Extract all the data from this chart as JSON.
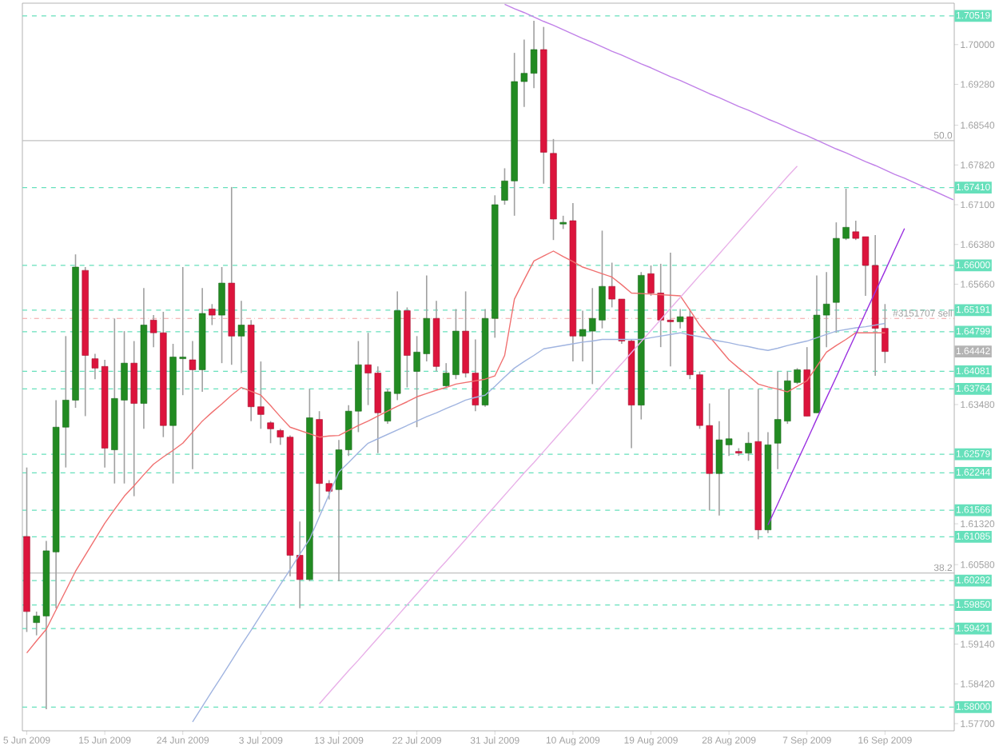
{
  "chart_data": {
    "type": "candlestick",
    "categories": [
      "5 Jun 2009",
      null,
      null,
      null,
      null,
      null,
      null,
      null,
      "15 Jun 2009",
      null,
      null,
      null,
      null,
      null,
      null,
      null,
      "24 Jun 2009",
      null,
      null,
      null,
      null,
      null,
      null,
      null,
      "3 Jul 2009",
      null,
      null,
      null,
      null,
      null,
      null,
      null,
      "13 Jul 2009",
      null,
      null,
      null,
      null,
      null,
      null,
      null,
      "22 Jul 2009",
      null,
      null,
      null,
      null,
      null,
      null,
      null,
      "31 Jul 2009",
      null,
      null,
      null,
      null,
      null,
      null,
      null,
      "10 Aug 2009",
      null,
      null,
      null,
      null,
      null,
      null,
      null,
      "19 Aug 2009",
      null,
      null,
      null,
      null,
      null,
      null,
      null,
      "28 Aug 2009",
      null,
      null,
      null,
      null,
      null,
      null,
      null,
      "7 Sep 2009",
      null,
      null,
      null,
      null,
      null,
      null,
      null,
      "16 Sep 2009",
      null,
      null,
      null,
      null,
      null,
      null,
      null
    ],
    "ylim": [
      1.5757,
      1.7075
    ],
    "yticks": [
      {
        "value": 1.7,
        "label": "1.70000"
      },
      {
        "value": 1.6928,
        "label": "1.69280"
      },
      {
        "value": 1.6854,
        "label": "1.68540"
      },
      {
        "value": 1.6782,
        "label": "1.67820"
      },
      {
        "value": 1.671,
        "label": "1.67100"
      },
      {
        "value": 1.6638,
        "label": "1.66380"
      },
      {
        "value": 1.6566,
        "label": "1.65660"
      },
      {
        "value": 1.6348,
        "label": "1.63480"
      },
      {
        "value": 1.6132,
        "label": "1.61320"
      },
      {
        "value": 1.6058,
        "label": "1.60580"
      },
      {
        "value": 1.5914,
        "label": "1.59140"
      },
      {
        "value": 1.5842,
        "label": "1.58420"
      },
      {
        "value": 1.577,
        "label": "1.57700"
      }
    ],
    "ohlc": [
      [
        1.6109,
        1.6234,
        1.5936,
        1.5973
      ],
      [
        1.5953,
        1.5973,
        1.593,
        1.5965
      ],
      [
        1.5965,
        1.6101,
        1.5796,
        1.6083
      ],
      [
        1.6081,
        1.6356,
        1.5979,
        1.6307
      ],
      [
        1.6307,
        1.6472,
        1.6234,
        1.6356
      ],
      [
        1.6356,
        1.662,
        1.6342,
        1.6597
      ],
      [
        1.6591,
        1.6597,
        1.6327,
        1.6437
      ],
      [
        1.6431,
        1.644,
        1.6394,
        1.6414
      ],
      [
        1.6417,
        1.6429,
        1.6234,
        1.6269
      ],
      [
        1.6266,
        1.6504,
        1.6205,
        1.6359
      ],
      [
        1.6356,
        1.6481,
        1.6205,
        1.6423
      ],
      [
        1.6423,
        1.6463,
        1.6182,
        1.635
      ],
      [
        1.635,
        1.6559,
        1.6304,
        1.6492
      ],
      [
        1.6501,
        1.651,
        1.6452,
        1.6478
      ],
      [
        1.6478,
        1.6516,
        1.6289,
        1.631
      ],
      [
        1.631,
        1.6458,
        1.6205,
        1.6434
      ],
      [
        1.6431,
        1.6597,
        1.6365,
        1.6434
      ],
      [
        1.6429,
        1.6463,
        1.6231,
        1.6411
      ],
      [
        1.6411,
        1.6559,
        1.6371,
        1.6513
      ],
      [
        1.6521,
        1.653,
        1.6492,
        1.651
      ],
      [
        1.651,
        1.6597,
        1.6423,
        1.6568
      ],
      [
        1.6568,
        1.6742,
        1.642,
        1.6472
      ],
      [
        1.6472,
        1.6536,
        1.6405,
        1.6492
      ],
      [
        1.6492,
        1.6501,
        1.6318,
        1.6344
      ],
      [
        1.6344,
        1.6426,
        1.6304,
        1.633
      ],
      [
        1.6315,
        1.6318,
        1.6278,
        1.6304
      ],
      [
        1.6301,
        1.6304,
        1.6275,
        1.6289
      ],
      [
        1.6289,
        1.6292,
        1.6037,
        1.6075
      ],
      [
        1.6075,
        1.6136,
        1.5979,
        1.6031
      ],
      [
        1.6031,
        1.6376,
        1.6028,
        1.6324
      ],
      [
        1.6321,
        1.6336,
        1.6153,
        1.6205
      ],
      [
        1.6205,
        1.6211,
        1.6176,
        1.6191
      ],
      [
        1.6194,
        1.6284,
        1.6028,
        1.6266
      ],
      [
        1.6266,
        1.6347,
        1.6255,
        1.6336
      ],
      [
        1.6336,
        1.6463,
        1.6298,
        1.642
      ],
      [
        1.642,
        1.6478,
        1.6347,
        1.6405
      ],
      [
        1.6405,
        1.6417,
        1.626,
        1.6333
      ],
      [
        1.6318,
        1.6376,
        1.6313,
        1.6371
      ],
      [
        1.6368,
        1.6553,
        1.6356,
        1.6518
      ],
      [
        1.6518,
        1.6524,
        1.6379,
        1.6437
      ],
      [
        1.6408,
        1.6472,
        1.6307,
        1.6443
      ],
      [
        1.644,
        1.6582,
        1.6426,
        1.6504
      ],
      [
        1.6504,
        1.6536,
        1.6408,
        1.6417
      ],
      [
        1.6382,
        1.6423,
        1.6379,
        1.6405
      ],
      [
        1.6402,
        1.6521,
        1.6394,
        1.6481
      ],
      [
        1.6481,
        1.6553,
        1.6397,
        1.6405
      ],
      [
        1.6405,
        1.6466,
        1.6336,
        1.6347
      ],
      [
        1.6347,
        1.6521,
        1.6344,
        1.6504
      ],
      [
        1.6504,
        1.6727,
        1.6469,
        1.671
      ],
      [
        1.6718,
        1.6776,
        1.671,
        1.6753
      ],
      [
        1.6753,
        1.6985,
        1.669,
        1.6933
      ],
      [
        1.6933,
        1.7009,
        1.6887,
        1.6948
      ],
      [
        1.6948,
        1.7043,
        1.6921,
        1.6991
      ],
      [
        1.6991,
        1.7032,
        1.6748,
        1.6805
      ],
      [
        1.6803,
        1.6829,
        1.6646,
        1.6684
      ],
      [
        1.6675,
        1.669,
        1.6666,
        1.6678
      ],
      [
        1.6681,
        1.6713,
        1.6426,
        1.6472
      ],
      [
        1.6472,
        1.6518,
        1.6426,
        1.6484
      ],
      [
        1.6481,
        1.6559,
        1.6385,
        1.6504
      ],
      [
        1.6501,
        1.6663,
        1.6486,
        1.6562
      ],
      [
        1.6562,
        1.6605,
        1.6524,
        1.6539
      ],
      [
        1.6539,
        1.6539,
        1.6458,
        1.6463
      ],
      [
        1.6463,
        1.6466,
        1.6269,
        1.6347
      ],
      [
        1.6347,
        1.6588,
        1.6321,
        1.6582
      ],
      [
        1.6585,
        1.66,
        1.6545,
        1.655
      ],
      [
        1.655,
        1.6603,
        1.6452,
        1.6501
      ],
      [
        1.6501,
        1.6623,
        1.6417,
        1.6498
      ],
      [
        1.6498,
        1.6521,
        1.6486,
        1.6507
      ],
      [
        1.6507,
        1.6521,
        1.6394,
        1.6402
      ],
      [
        1.6402,
        1.6408,
        1.6304,
        1.631
      ],
      [
        1.631,
        1.635,
        1.6156,
        1.6223
      ],
      [
        1.6223,
        1.6318,
        1.6147,
        1.6284
      ],
      [
        1.6275,
        1.6376,
        1.6255,
        1.6286
      ],
      [
        1.6263,
        1.6269,
        1.6255,
        1.626
      ],
      [
        1.626,
        1.6298,
        1.6246,
        1.6278
      ],
      [
        1.6281,
        1.6376,
        1.6104,
        1.6121
      ],
      [
        1.6121,
        1.6298,
        1.6115,
        1.6275
      ],
      [
        1.6278,
        1.6408,
        1.6231,
        1.6321
      ],
      [
        1.6318,
        1.6408,
        1.6313,
        1.6391
      ],
      [
        1.6388,
        1.6414,
        1.6385,
        1.6411
      ],
      [
        1.6411,
        1.6452,
        1.6327,
        1.6327
      ],
      [
        1.6333,
        1.6582,
        1.6333,
        1.651
      ],
      [
        1.651,
        1.6588,
        1.6452,
        1.653
      ],
      [
        1.6533,
        1.6678,
        1.6478,
        1.6649
      ],
      [
        1.6649,
        1.6739,
        1.6646,
        1.6669
      ],
      [
        1.6661,
        1.6681,
        1.6646,
        1.6649
      ],
      [
        1.6652,
        1.6652,
        1.6545,
        1.66
      ],
      [
        1.66,
        1.6655,
        1.64,
        1.6486
      ],
      [
        1.6486,
        1.653,
        1.6423,
        1.6444
      ],
      null,
      null,
      null,
      null,
      null,
      null,
      null
    ],
    "colors": [
      "#dc143c",
      "#228b22",
      "#228b22",
      "#228b22",
      "#228b22",
      "#228b22",
      "#dc143c",
      "#dc143c",
      "#dc143c",
      "#228b22",
      "#228b22",
      "#dc143c",
      "#228b22",
      "#dc143c",
      "#dc143c",
      "#228b22",
      "#228b22",
      "#dc143c",
      "#228b22",
      "#dc143c",
      "#228b22",
      "#dc143c",
      "#228b22",
      "#dc143c",
      "#dc143c",
      "#dc143c",
      "#dc143c",
      "#dc143c",
      "#dc143c",
      "#228b22",
      "#dc143c",
      "#dc143c",
      "#228b22",
      "#228b22",
      "#228b22",
      "#dc143c",
      "#dc143c",
      "#228b22",
      "#228b22",
      "#dc143c",
      "#228b22",
      "#228b22",
      "#dc143c",
      "#228b22",
      "#228b22",
      "#dc143c",
      "#dc143c",
      "#228b22",
      "#228b22",
      "#228b22",
      "#228b22",
      "#228b22",
      "#228b22",
      "#dc143c",
      "#dc143c",
      "#228b22",
      "#dc143c",
      "#228b22",
      "#228b22",
      "#228b22",
      "#dc143c",
      "#dc143c",
      "#dc143c",
      "#228b22",
      "#dc143c",
      "#dc143c",
      "#dc143c",
      "#228b22",
      "#dc143c",
      "#dc143c",
      "#dc143c",
      "#228b22",
      "#228b22",
      "#dc143c",
      "#228b22",
      "#dc143c",
      "#228b22",
      "#228b22",
      "#228b22",
      "#228b22",
      "#dc143c",
      "#228b22",
      "#228b22",
      "#228b22",
      "#228b22",
      "#dc143c",
      "#dc143c",
      "#dc143c",
      "#dc143c",
      null,
      null,
      null,
      null,
      null,
      null,
      null
    ],
    "series": [
      {
        "type": "line",
        "color": "#f07070",
        "values": [
          1.5898,
          1.592,
          1.5941,
          1.5976,
          1.6011,
          1.6046,
          1.6075,
          1.6104,
          1.6133,
          1.6158,
          1.6182,
          1.6201,
          1.6221,
          1.624,
          1.6253,
          1.6265,
          1.6278,
          1.6298,
          1.6318,
          1.6334,
          1.6349,
          1.6365,
          1.6379,
          1.6372,
          1.6365,
          1.6346,
          1.6326,
          1.6307,
          1.6301,
          1.6295,
          1.6289,
          1.6291,
          1.6292,
          1.6301,
          1.631,
          1.6318,
          1.6327,
          1.6336,
          1.6345,
          1.6353,
          1.6362,
          1.6368,
          1.6374,
          1.6379,
          1.6385,
          1.6388,
          1.6391,
          1.6394,
          1.64,
          1.6437,
          1.6539,
          1.6574,
          1.6608,
          1.6617,
          1.6626,
          1.6616,
          1.6607,
          1.6597,
          1.6591,
          1.6585,
          1.6579,
          1.6565,
          1.655,
          1.6549,
          1.6548,
          1.6547,
          1.6546,
          1.6545,
          1.6519,
          1.6492,
          1.6471,
          1.645,
          1.6429,
          1.6414,
          1.64,
          1.6385,
          1.638,
          1.6376,
          1.6371,
          1.6381,
          1.6391,
          1.6417,
          1.6443,
          1.6455,
          1.6466,
          1.6478,
          1.6478,
          1.6478,
          1.6478,
          null,
          null,
          null,
          null,
          null,
          null,
          null
        ]
      },
      {
        "type": "line",
        "color": "#a0b4e0",
        "values": [
          null,
          null,
          null,
          null,
          null,
          null,
          null,
          null,
          null,
          null,
          null,
          null,
          null,
          null,
          null,
          null,
          null,
          1.5773,
          1.5801,
          1.5829,
          1.5856,
          1.5884,
          1.5912,
          1.5939,
          1.5967,
          1.5994,
          1.6022,
          1.6049,
          1.6077,
          1.6104,
          1.6145,
          1.6185,
          1.6226,
          1.6243,
          1.6261,
          1.6278,
          1.6286,
          1.6294,
          1.6302,
          1.631,
          1.6318,
          1.6326,
          1.6333,
          1.6341,
          1.6348,
          1.6356,
          1.6361,
          1.6365,
          1.6381,
          1.6398,
          1.6414,
          1.6426,
          1.6437,
          1.6449,
          1.6452,
          1.6455,
          1.6458,
          1.6461,
          1.6463,
          1.6466,
          1.6466,
          1.6466,
          1.6466,
          1.6466,
          1.6469,
          1.6472,
          1.6475,
          1.6478,
          1.6474,
          1.6471,
          1.6467,
          1.6463,
          1.646,
          1.6456,
          1.6453,
          1.6449,
          1.6446,
          1.645,
          1.6455,
          1.6459,
          1.6463,
          1.6469,
          1.6475,
          1.6481,
          1.6484,
          1.6487,
          1.6489,
          1.6492,
          1.6495,
          null,
          null,
          null,
          null,
          null,
          null,
          null
        ]
      },
      {
        "type": "line",
        "color": "#e8b0e8",
        "values": [
          null,
          null,
          null,
          null,
          null,
          null,
          null,
          null,
          null,
          null,
          null,
          null,
          null,
          null,
          null,
          null,
          null,
          null,
          null,
          null,
          null,
          null,
          null,
          null,
          null,
          null,
          null,
          null,
          null,
          null,
          1.5806,
          1.5826,
          1.5846,
          1.5866,
          1.5885,
          1.5905,
          1.5925,
          1.5945,
          1.5965,
          1.5985,
          1.6005,
          1.6025,
          1.6045,
          1.6064,
          1.6084,
          1.6104,
          1.6124,
          1.6144,
          1.6164,
          1.6184,
          1.6204,
          1.6224,
          1.6243,
          1.6263,
          1.6283,
          1.6303,
          1.6323,
          1.6343,
          1.6363,
          1.6383,
          1.6403,
          1.6422,
          1.6442,
          1.6462,
          1.6482,
          1.6502,
          1.6522,
          1.6542,
          1.6562,
          1.6582,
          1.6601,
          1.6621,
          1.6641,
          1.6661,
          1.6681,
          1.6701,
          1.6721,
          1.6741,
          1.6761,
          1.678,
          null,
          null,
          null,
          null,
          null,
          null,
          null,
          null,
          null,
          null,
          null,
          null,
          null,
          null,
          null,
          null
        ]
      },
      {
        "type": "line",
        "color": "#c080e8",
        "values": [
          null,
          null,
          null,
          null,
          null,
          null,
          null,
          null,
          null,
          null,
          null,
          null,
          null,
          null,
          null,
          null,
          null,
          null,
          null,
          null,
          null,
          null,
          null,
          null,
          null,
          null,
          null,
          null,
          null,
          null,
          null,
          null,
          null,
          null,
          null,
          null,
          null,
          null,
          null,
          null,
          null,
          null,
          null,
          null,
          null,
          null,
          null,
          null,
          null,
          1.7073,
          1.7065,
          1.7058,
          1.705,
          1.7042,
          1.7035,
          1.7027,
          1.7019,
          1.7011,
          1.7004,
          1.6996,
          1.6988,
          1.6981,
          1.6973,
          1.6965,
          1.6958,
          1.695,
          1.6942,
          1.6935,
          1.6927,
          1.6919,
          1.6911,
          1.6904,
          1.6896,
          1.6888,
          1.6881,
          1.6873,
          1.6865,
          1.6858,
          1.685,
          1.6842,
          1.6835,
          1.6827,
          1.6819,
          1.6811,
          1.6804,
          1.6796,
          1.6788,
          1.6781,
          1.6773,
          1.6765,
          1.6758,
          1.675,
          1.6742,
          1.6735,
          1.6727,
          1.6719
        ]
      },
      {
        "type": "line",
        "color": "#9a30e0",
        "values": [
          null,
          null,
          null,
          null,
          null,
          null,
          null,
          null,
          null,
          null,
          null,
          null,
          null,
          null,
          null,
          null,
          null,
          null,
          null,
          null,
          null,
          null,
          null,
          null,
          null,
          null,
          null,
          null,
          null,
          null,
          null,
          null,
          null,
          null,
          null,
          null,
          null,
          null,
          null,
          null,
          null,
          null,
          null,
          null,
          null,
          null,
          null,
          null,
          null,
          null,
          null,
          null,
          null,
          null,
          null,
          null,
          null,
          null,
          null,
          null,
          null,
          null,
          null,
          null,
          null,
          null,
          null,
          null,
          null,
          null,
          null,
          null,
          null,
          null,
          null,
          null,
          1.613,
          1.6168,
          1.6207,
          1.6245,
          1.6283,
          1.6322,
          1.636,
          1.6398,
          1.6437,
          1.6475,
          1.6514,
          1.6552,
          1.659,
          1.6629,
          1.6667,
          null,
          null,
          null,
          null,
          null
        ]
      }
    ],
    "ref_lines": [
      {
        "axis": "y",
        "value": 1.70519,
        "label": "1.70519",
        "color": "#66e0bb",
        "line_style": "dashed"
      },
      {
        "axis": "y",
        "value": 1.6741,
        "label": "1.67410",
        "color": "#66e0bb",
        "line_style": "dashed"
      },
      {
        "axis": "y",
        "value": 1.66,
        "label": "1.66000",
        "color": "#66e0bb",
        "line_style": "dashed"
      },
      {
        "axis": "y",
        "value": 1.65191,
        "label": "1.65191",
        "color": "#66e0bb",
        "line_style": "dashed"
      },
      {
        "axis": "y",
        "value": 1.64799,
        "label": "1.64799",
        "color": "#66e0bb",
        "line_style": "dashed"
      },
      {
        "axis": "y",
        "value": 1.64081,
        "label": "1.64081",
        "color": "#66e0bb",
        "line_style": "dashed"
      },
      {
        "axis": "y",
        "value": 1.63764,
        "label": "1.63764",
        "color": "#66e0bb",
        "line_style": "dashed"
      },
      {
        "axis": "y",
        "value": 1.62579,
        "label": "1.62579",
        "color": "#66e0bb",
        "line_style": "dashed"
      },
      {
        "axis": "y",
        "value": 1.62244,
        "label": "1.62244",
        "color": "#66e0bb",
        "line_style": "dashed"
      },
      {
        "axis": "y",
        "value": 1.61566,
        "label": "1.61566",
        "color": "#66e0bb",
        "line_style": "dashed"
      },
      {
        "axis": "y",
        "value": 1.61085,
        "label": "1.61085",
        "color": "#66e0bb",
        "line_style": "dashed"
      },
      {
        "axis": "y",
        "value": 1.60292,
        "label": "1.60292",
        "color": "#66e0bb",
        "line_style": "dashed"
      },
      {
        "axis": "y",
        "value": 1.5985,
        "label": "1.59850",
        "color": "#66e0bb",
        "line_style": "dashed"
      },
      {
        "axis": "y",
        "value": 1.59421,
        "label": "1.59421",
        "color": "#66e0bb",
        "line_style": "dashed"
      },
      {
        "axis": "y",
        "value": 1.58,
        "label": "1.58000",
        "color": "#66e0bb",
        "line_style": "dashed"
      },
      {
        "axis": "y",
        "value": 1.6826,
        "color": "#c0c0c0",
        "line_style": "solid"
      },
      {
        "axis": "y",
        "value": 1.6043,
        "color": "#c0c0c0",
        "line_style": "solid"
      },
      {
        "axis": "y",
        "value": 1.6504,
        "label": "#3151707 sell",
        "color": "#f4a0a0",
        "line_style": "dotted"
      }
    ],
    "annotations": [
      {
        "text": "1.64442",
        "y": 1.64442
      },
      {
        "text": "50.0",
        "y": 1.6826
      },
      {
        "text": "38.2",
        "y": 1.6043
      }
    ]
  }
}
